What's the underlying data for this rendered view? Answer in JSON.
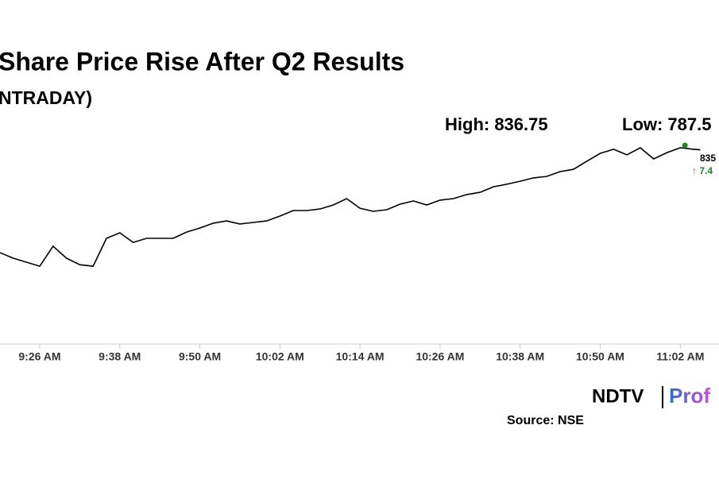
{
  "chart_data": {
    "type": "line",
    "title": "Share Price Rise After Q2 Results",
    "subtitle": "NTRADAY)",
    "high": {
      "text": "High: 836.75",
      "value": 836.75,
      "x": 662.7,
      "color": "#1a8a1a"
    },
    "low_text": "Low: 787.5",
    "last_label": "835",
    "change_label": "↑ 7.4",
    "change_color": "#1a8a1a",
    "source": "Source: NSE",
    "logo": {
      "left": "NDTV",
      "right": "Prof"
    },
    "x": [
      560,
      562,
      564,
      566,
      568,
      570,
      572,
      574,
      576,
      578,
      580,
      582,
      584,
      586,
      588,
      590,
      592,
      594,
      596,
      598,
      600,
      602,
      604,
      606,
      608,
      610,
      612,
      614,
      616,
      618,
      620,
      622,
      624,
      626,
      628,
      630,
      632,
      634,
      636,
      638,
      640,
      642,
      644,
      646,
      648,
      650,
      652,
      654,
      656,
      658,
      660,
      662,
      664,
      665
    ],
    "series": [
      {
        "color": "#000000",
        "values": [
          794.4,
          792.2,
          790.6,
          789.0,
          796.9,
          792.2,
          789.6,
          789.0,
          800.0,
          802.2,
          798.4,
          800.0,
          800.0,
          800.0,
          802.5,
          804.1,
          806.0,
          806.9,
          805.7,
          806.3,
          806.9,
          808.8,
          811.0,
          811.0,
          811.6,
          813.2,
          815.7,
          811.9,
          810.7,
          811.3,
          813.5,
          814.8,
          813.2,
          815.1,
          815.7,
          817.3,
          818.2,
          820.4,
          821.4,
          822.6,
          823.9,
          824.5,
          826.4,
          827.3,
          830.5,
          833.6,
          835.2,
          833.0,
          835.8,
          831.4,
          833.9,
          835.8,
          835.2,
          835.0
        ]
      }
    ],
    "xlim": [
      560.05,
      667.8
    ],
    "ylim": [
      758.25,
      850.25
    ],
    "xticks": [
      {
        "value": 566,
        "label": "9:26 AM"
      },
      {
        "value": 578,
        "label": "9:38 AM"
      },
      {
        "value": 590,
        "label": "9:50 AM"
      },
      {
        "value": 602,
        "label": "10:02 AM"
      },
      {
        "value": 614,
        "label": "10:14 AM"
      },
      {
        "value": 626,
        "label": "10:26 AM"
      },
      {
        "value": 638,
        "label": "10:38 AM"
      },
      {
        "value": 650,
        "label": "10:50 AM"
      },
      {
        "value": 662,
        "label": "11:02 AM"
      }
    ]
  }
}
